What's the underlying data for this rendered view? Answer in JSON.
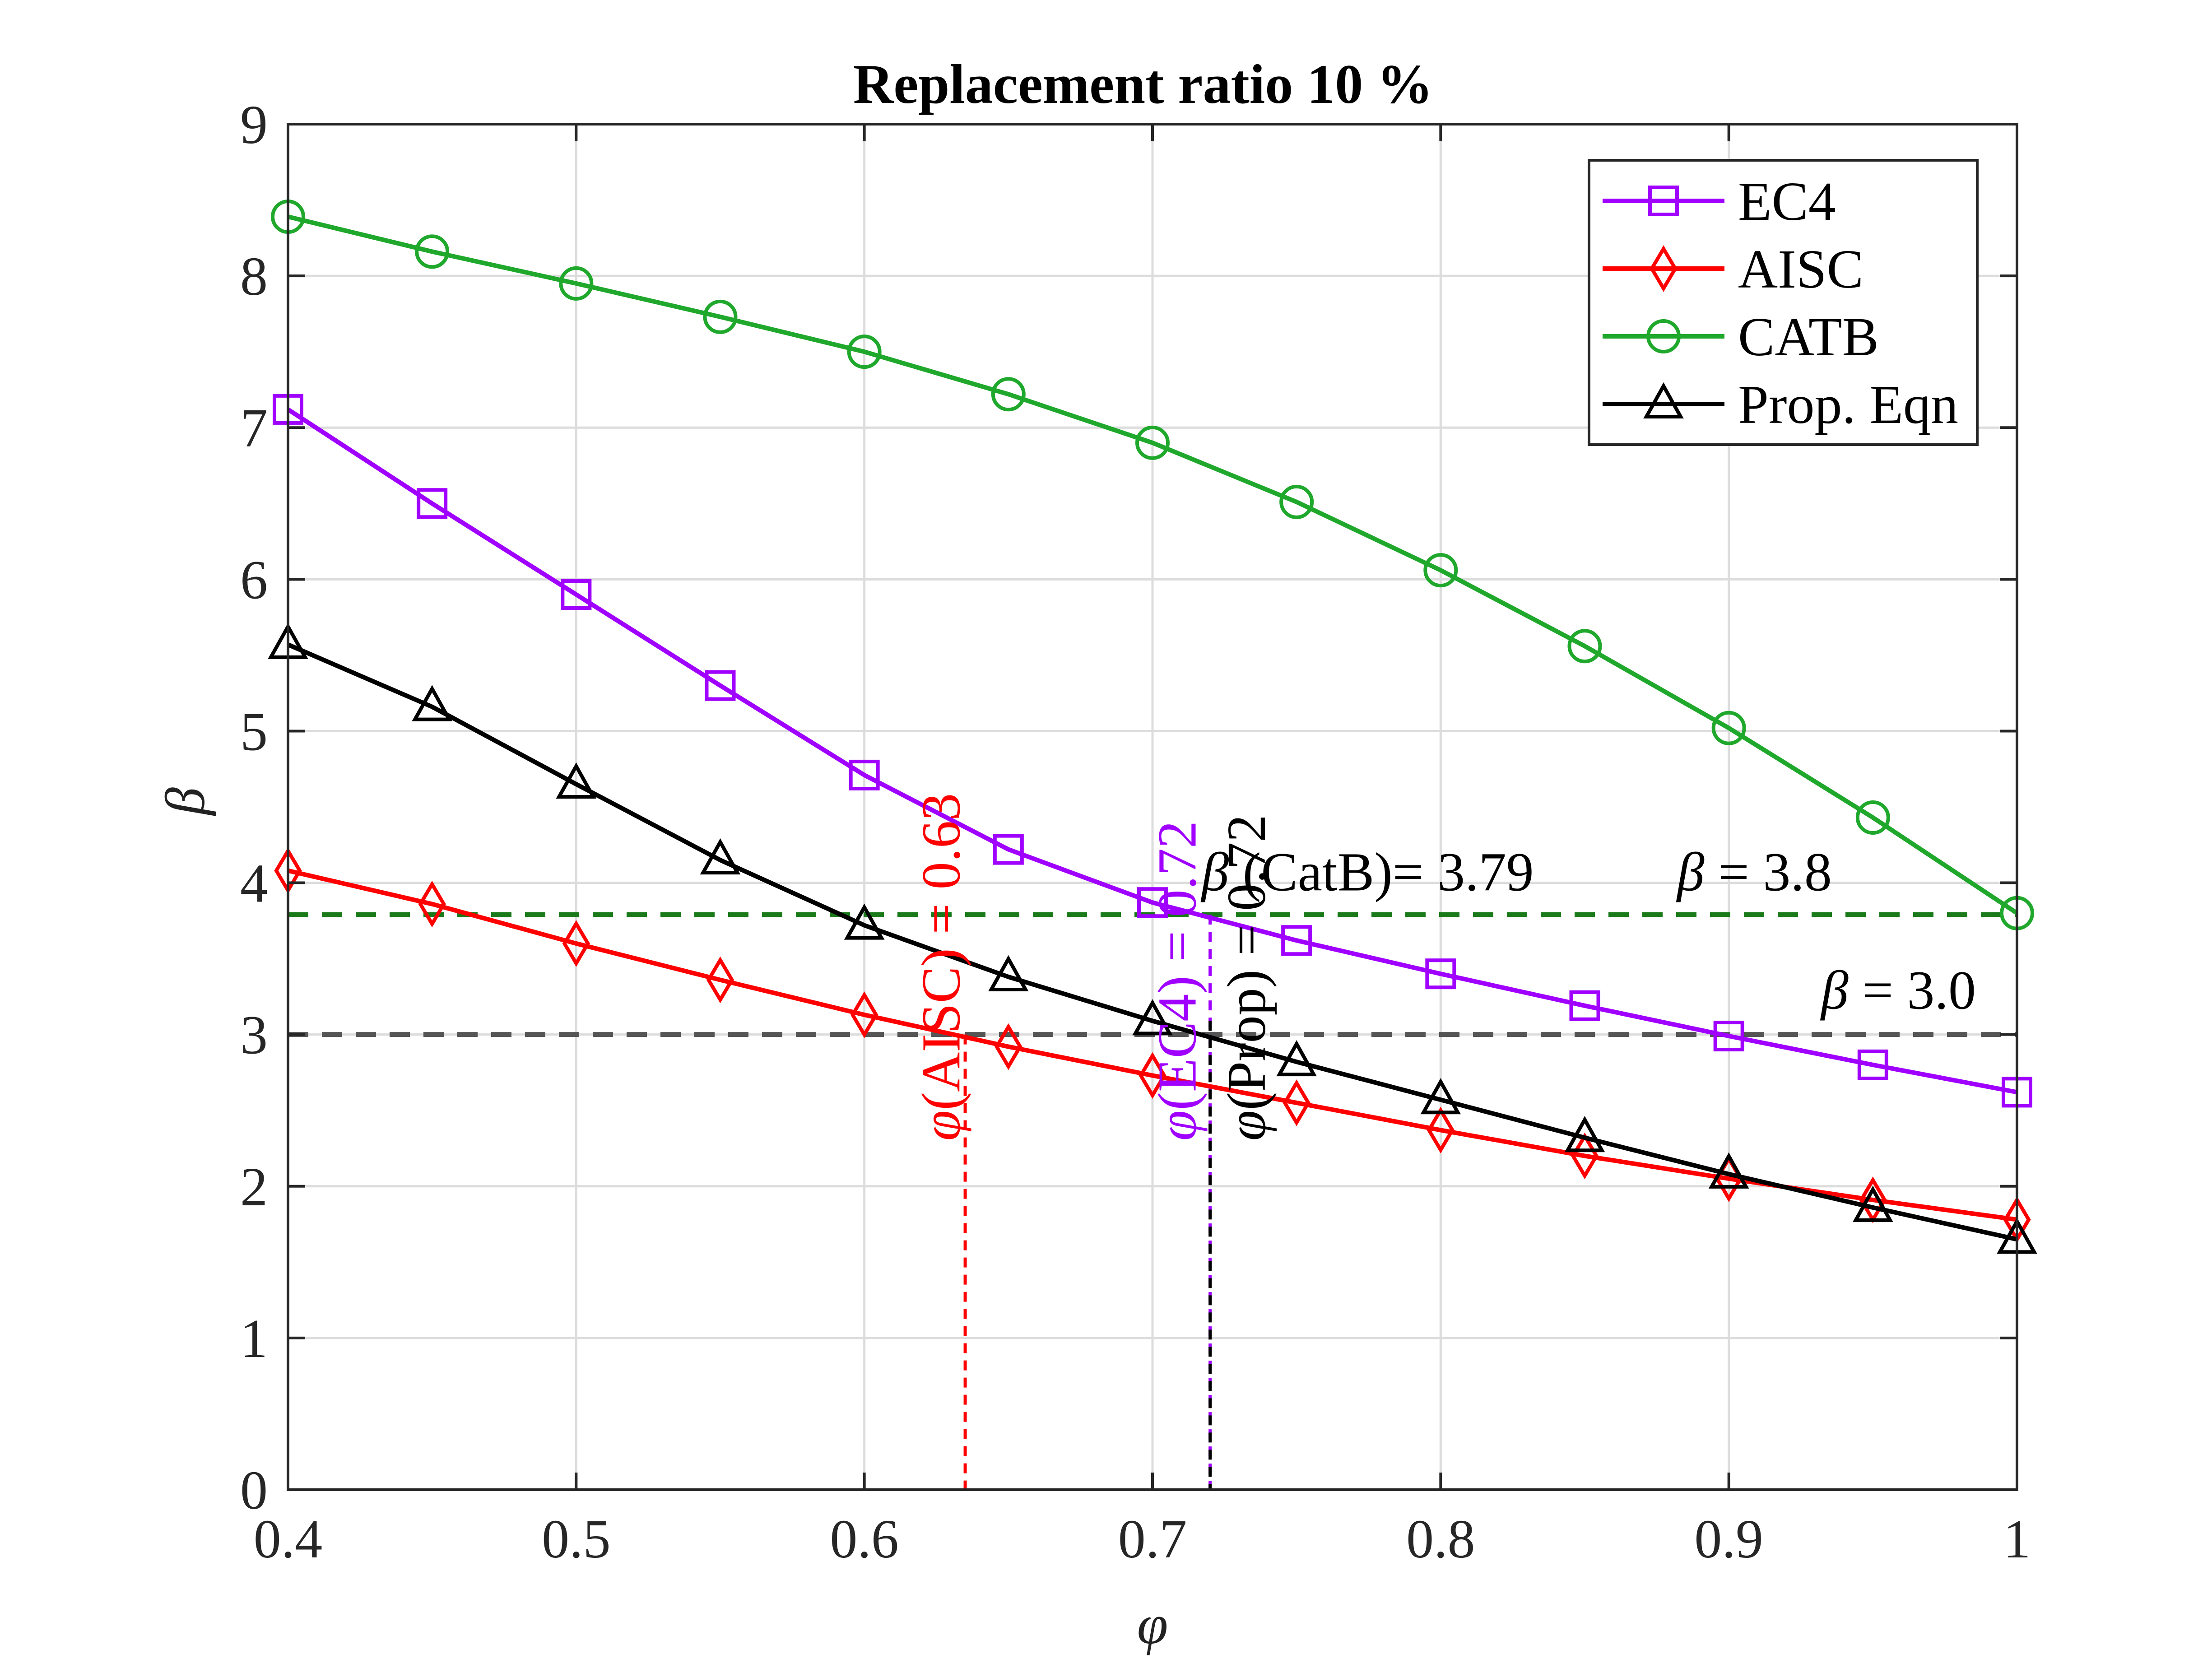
{
  "chart_data": {
    "type": "line",
    "title": "Replacement ratio 10 %",
    "xlabel": "φ",
    "ylabel": "β",
    "xlim": [
      0.4,
      1.0
    ],
    "ylim": [
      0,
      9
    ],
    "xticks": [
      "0.4",
      "0.5",
      "0.6",
      "0.7",
      "0.8",
      "0.9",
      "1"
    ],
    "yticks": [
      "0",
      "1",
      "2",
      "3",
      "4",
      "5",
      "6",
      "7",
      "8",
      "9"
    ],
    "grid": true,
    "legend_position": "top-right",
    "x": [
      0.4,
      0.45,
      0.5,
      0.55,
      0.6,
      0.65,
      0.7,
      0.75,
      0.8,
      0.85,
      0.9,
      0.95,
      1.0
    ],
    "series": [
      {
        "name": "EC4",
        "color": "#a000ff",
        "marker": "square",
        "values": [
          7.12,
          6.5,
          5.9,
          5.3,
          4.71,
          4.22,
          3.87,
          3.62,
          3.4,
          3.19,
          2.99,
          2.8,
          2.62
        ]
      },
      {
        "name": "AISC",
        "color": "#ff0000",
        "marker": "diamond",
        "values": [
          4.08,
          3.86,
          3.6,
          3.36,
          3.13,
          2.92,
          2.73,
          2.55,
          2.37,
          2.2,
          2.05,
          1.91,
          1.78
        ]
      },
      {
        "name": "CATB",
        "color": "#1fa82c",
        "marker": "circle",
        "values": [
          8.39,
          8.16,
          7.95,
          7.73,
          7.5,
          7.22,
          6.9,
          6.51,
          6.06,
          5.56,
          5.02,
          4.43,
          3.8
        ]
      },
      {
        "name": "Prop. Eqn",
        "color": "#000000",
        "marker": "triangle",
        "values": [
          5.57,
          5.16,
          4.65,
          4.15,
          3.72,
          3.38,
          3.09,
          2.82,
          2.57,
          2.32,
          2.08,
          1.86,
          1.65
        ]
      }
    ],
    "reference_lines": [
      {
        "y": 3.79,
        "color": "#1a7a1a",
        "style": "dashed"
      },
      {
        "y": 3.0,
        "color": "#555555",
        "style": "dashed"
      }
    ],
    "vertical_markers": [
      {
        "x": 0.635,
        "y_top": 3.0,
        "color": "#ff0000"
      },
      {
        "x": 0.72,
        "y_top": 3.79,
        "color": "#a000ff"
      },
      {
        "x": 0.72,
        "y_top": 3.09,
        "color": "#000000"
      }
    ],
    "annotations": [
      {
        "sym": "β",
        "rest": " (CatB)= 3.79",
        "x": 0.717,
        "y": 3.95,
        "color": "#000000",
        "rotate": false
      },
      {
        "sym": "β",
        "rest": " = 3.8",
        "x": 0.882,
        "y": 3.95,
        "color": "#000000",
        "rotate": false
      },
      {
        "sym": "β",
        "rest": " = 3.0",
        "x": 0.932,
        "y": 3.17,
        "color": "#000000",
        "rotate": false
      },
      {
        "sym": "φ",
        "rest": "(AISC) = 0.63",
        "x": 0.633,
        "y": 2.3,
        "color": "#ff0000",
        "rotate": true
      },
      {
        "sym": "φ",
        "rest": "(EC4) = 0.72",
        "x": 0.715,
        "y": 2.3,
        "color": "#a000ff",
        "rotate": true
      },
      {
        "sym": "φ",
        "rest": "(Prop) = 0.72",
        "x": 0.739,
        "y": 2.3,
        "color": "#000000",
        "rotate": true
      }
    ]
  }
}
